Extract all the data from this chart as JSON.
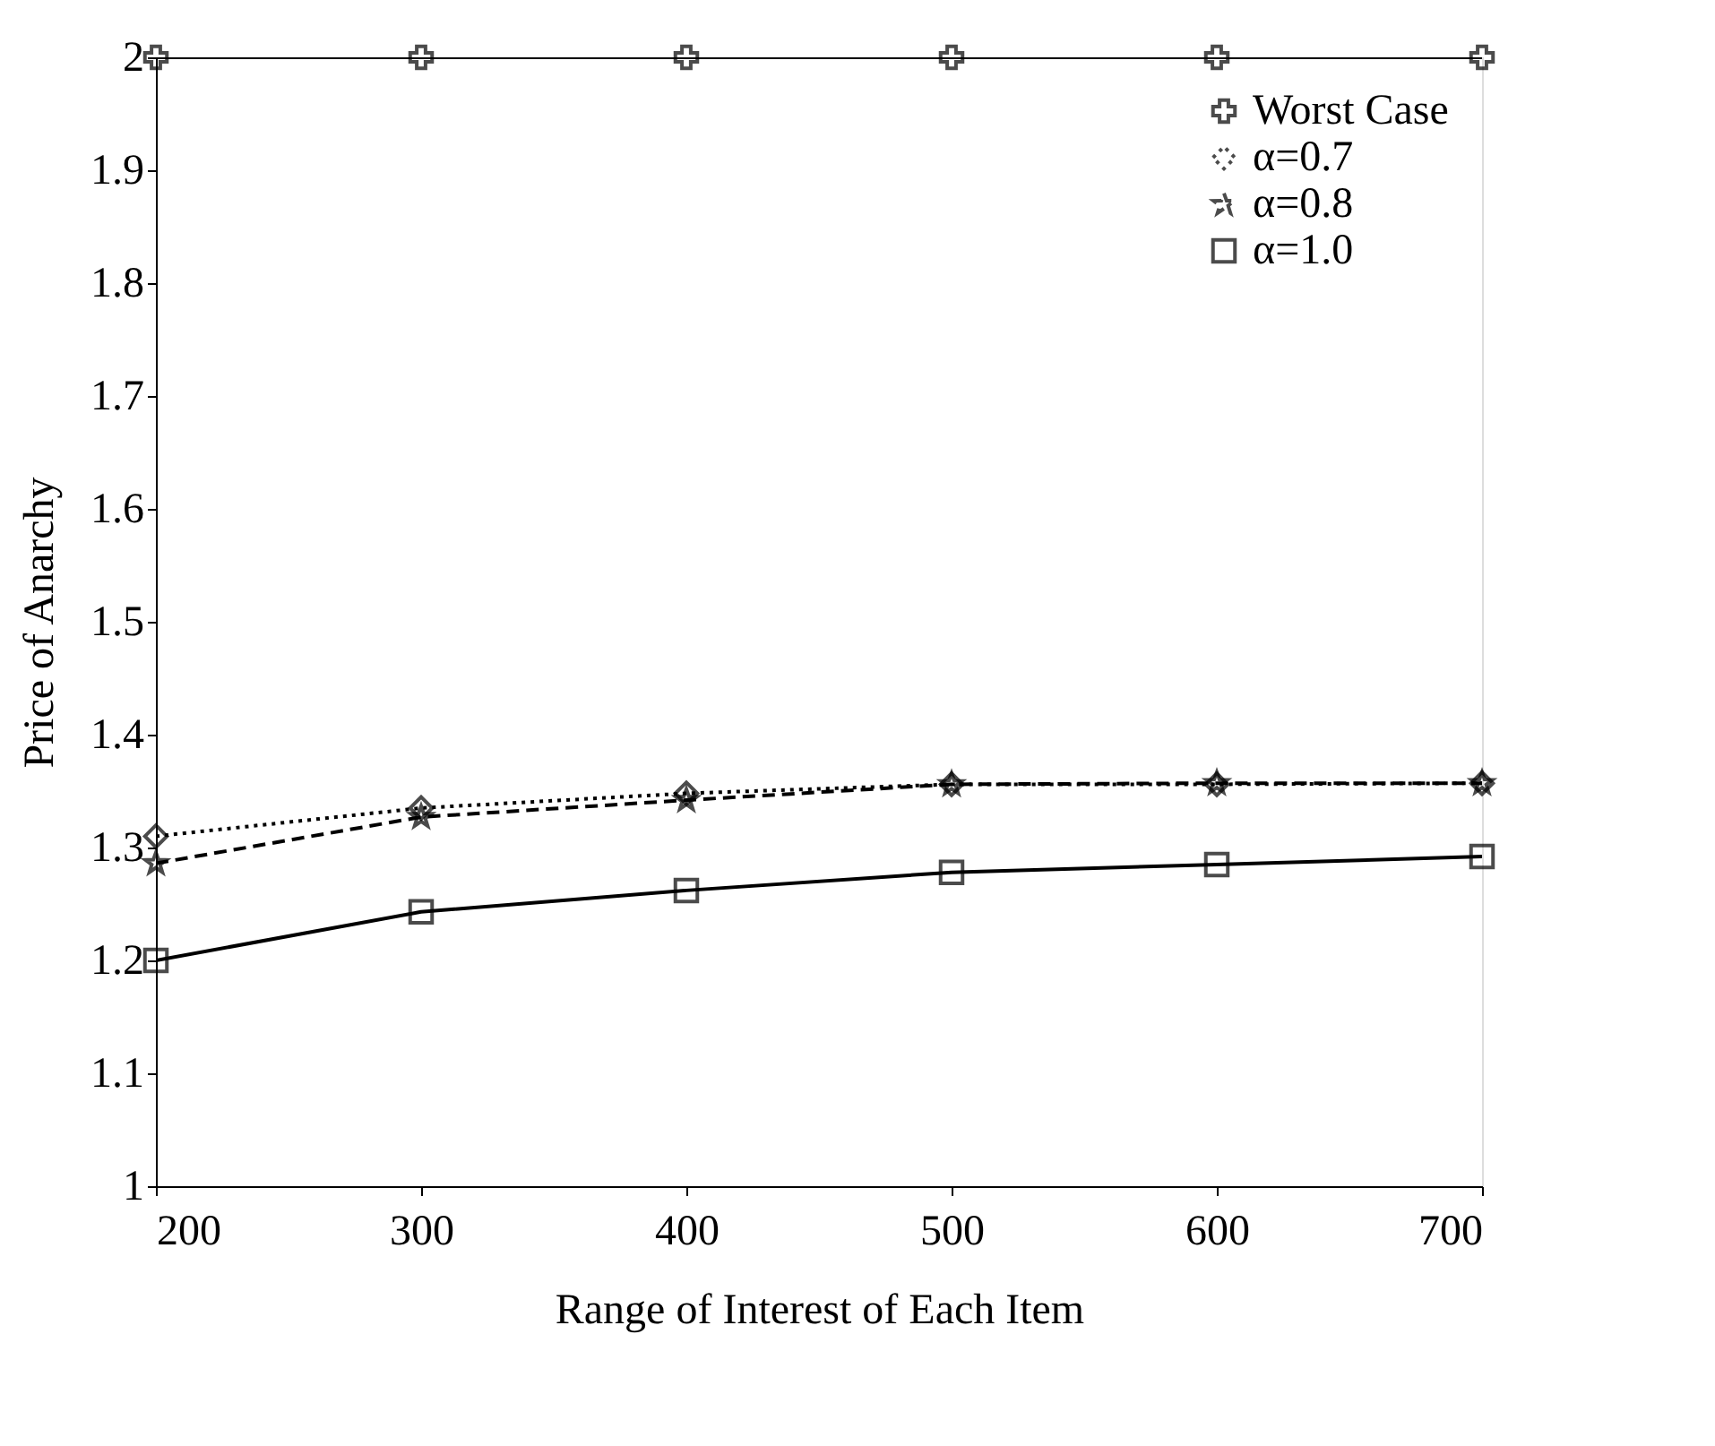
{
  "chart_data": {
    "type": "line",
    "xlabel": "Range of Interest of Each Item",
    "ylabel": "Price of Anarchy",
    "x": [
      200,
      300,
      400,
      500,
      600,
      700
    ],
    "series": [
      {
        "name": "Worst Case",
        "color": "#000000",
        "marker": "cross",
        "line_style": "solid",
        "values": [
          2,
          2,
          2,
          2,
          2,
          2
        ]
      },
      {
        "name": "α=0.7",
        "color": "#000000",
        "marker": "diamond",
        "line_style": "dotted",
        "values": [
          1.31,
          1.335,
          1.348,
          1.356,
          1.356,
          1.357
        ]
      },
      {
        "name": "α=0.8",
        "color": "#000000",
        "marker": "star",
        "line_style": "dashed",
        "values": [
          1.286,
          1.327,
          1.342,
          1.356,
          1.357,
          1.357
        ]
      },
      {
        "name": "α=1.0",
        "color": "#000000",
        "marker": "square",
        "line_style": "solid",
        "values": [
          1.2,
          1.243,
          1.262,
          1.278,
          1.285,
          1.292
        ]
      }
    ],
    "xlim": [
      200,
      700
    ],
    "xticks": [
      200,
      300,
      400,
      500,
      600,
      700
    ],
    "ylim": [
      1,
      2
    ],
    "yticks": [
      1,
      1.1,
      1.2,
      1.3,
      1.4,
      1.5,
      1.6,
      1.7,
      1.8,
      1.9,
      2
    ],
    "grid": false,
    "legend": "top right"
  }
}
